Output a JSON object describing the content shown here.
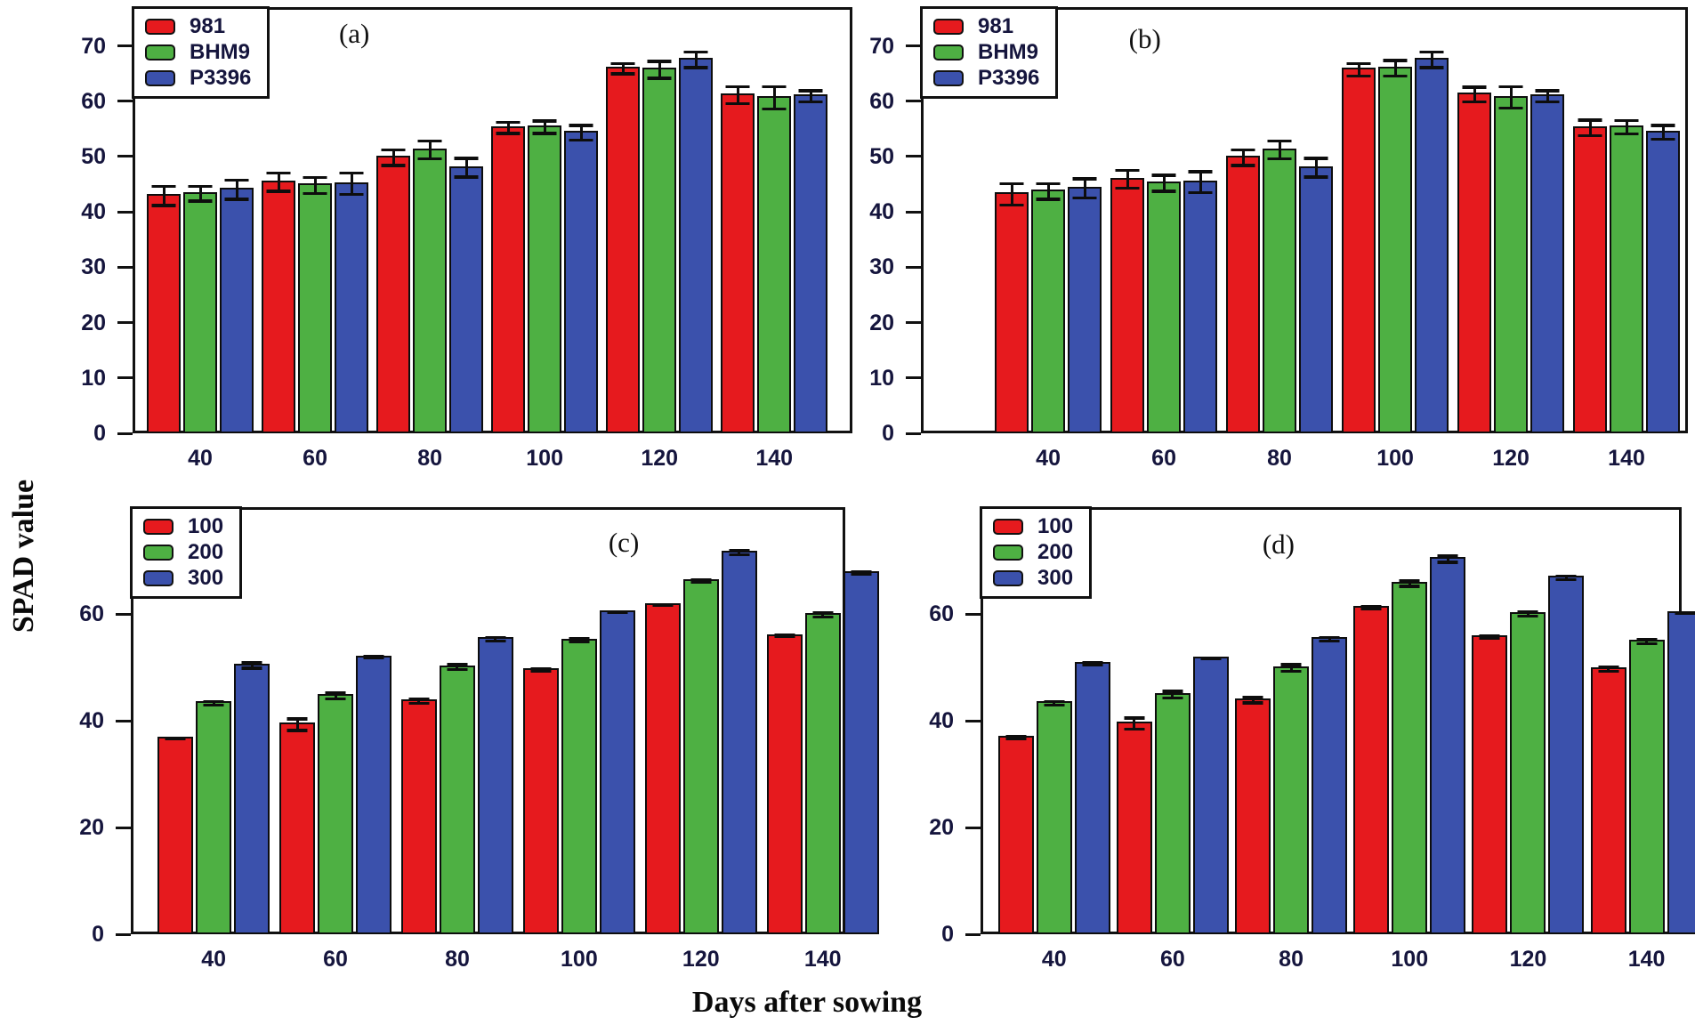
{
  "figure": {
    "xlabel": "Days after sowing",
    "ylabel": "SPAD value"
  },
  "colors": {
    "red": "#e61a1e",
    "green": "#4eb043",
    "blue": "#3b51ac",
    "axis": "#111111",
    "tick_text": "#15153d"
  },
  "chart_data": [
    {
      "id": "a",
      "panel_label": "(a)",
      "type": "bar",
      "legend_position": "top-left",
      "grid": false,
      "categories": [
        "40",
        "60",
        "80",
        "100",
        "120",
        "140"
      ],
      "ylim": [
        0,
        77
      ],
      "yticks": [
        0,
        10,
        20,
        30,
        40,
        50,
        60,
        70
      ],
      "series": [
        {
          "name": "981",
          "color": "red",
          "values": [
            43.2,
            45.7,
            50.1,
            55.5,
            66.2,
            61.4
          ],
          "errors": [
            2.0,
            1.9,
            1.7,
            1.3,
            1.2,
            1.8
          ]
        },
        {
          "name": "BHM9",
          "color": "green",
          "values": [
            43.6,
            45.1,
            51.5,
            55.6,
            66.0,
            60.9
          ],
          "errors": [
            1.6,
            1.7,
            1.9,
            1.4,
            1.8,
            2.3
          ]
        },
        {
          "name": "P3396",
          "color": "blue",
          "values": [
            44.3,
            45.4,
            48.3,
            54.6,
            67.8,
            61.2
          ],
          "errors": [
            2.0,
            2.2,
            2.0,
            1.6,
            1.7,
            1.3
          ]
        }
      ]
    },
    {
      "id": "b",
      "panel_label": "(b)",
      "type": "bar",
      "legend_position": "top-left",
      "grid": false,
      "categories": [
        "40",
        "60",
        "80",
        "100",
        "120",
        "140"
      ],
      "ylim": [
        0,
        77
      ],
      "yticks": [
        0,
        10,
        20,
        30,
        40,
        50,
        60,
        70
      ],
      "series": [
        {
          "name": "981",
          "color": "red",
          "values": [
            43.5,
            46.2,
            50.1,
            66.0,
            61.5,
            55.5
          ],
          "errors": [
            2.2,
            1.9,
            1.7,
            1.4,
            1.6,
            1.7
          ]
        },
        {
          "name": "BHM9",
          "color": "green",
          "values": [
            44.0,
            45.5,
            51.5,
            66.3,
            61.0,
            55.6
          ],
          "errors": [
            1.7,
            1.7,
            1.9,
            1.7,
            2.2,
            1.5
          ]
        },
        {
          "name": "P3396",
          "color": "blue",
          "values": [
            44.6,
            45.7,
            48.3,
            67.8,
            61.2,
            54.7
          ],
          "errors": [
            2.0,
            2.2,
            2.0,
            1.7,
            1.3,
            1.5
          ]
        }
      ]
    },
    {
      "id": "c",
      "panel_label": "(c)",
      "type": "bar",
      "legend_position": "top-left",
      "grid": false,
      "categories": [
        "40",
        "60",
        "80",
        "100",
        "120",
        "140"
      ],
      "ylim": [
        0,
        80
      ],
      "yticks": [
        0,
        20,
        40,
        60
      ],
      "series": [
        {
          "name": "100",
          "color": "red",
          "values": [
            37.0,
            39.6,
            44.0,
            49.8,
            62.0,
            56.2
          ],
          "errors": [
            0.4,
            1.4,
            0.7,
            0.5,
            0.4,
            0.4
          ]
        },
        {
          "name": "200",
          "color": "green",
          "values": [
            43.6,
            45.0,
            50.4,
            55.4,
            66.5,
            60.2
          ],
          "errors": [
            0.6,
            0.9,
            0.8,
            0.6,
            0.5,
            0.7
          ]
        },
        {
          "name": "300",
          "color": "blue",
          "values": [
            50.7,
            52.2,
            55.6,
            60.6,
            71.8,
            68.0
          ],
          "errors": [
            0.8,
            0.4,
            0.6,
            0.3,
            0.7,
            0.5
          ]
        }
      ]
    },
    {
      "id": "d",
      "panel_label": "(d)",
      "type": "bar",
      "legend_position": "top-left",
      "grid": false,
      "categories": [
        "40",
        "60",
        "80",
        "100",
        "120",
        "140"
      ],
      "ylim": [
        0,
        80
      ],
      "yticks": [
        0,
        20,
        40,
        60
      ],
      "series": [
        {
          "name": "100",
          "color": "red",
          "values": [
            37.2,
            39.8,
            44.2,
            61.5,
            56.0,
            50.0
          ],
          "errors": [
            0.5,
            1.3,
            0.8,
            0.5,
            0.5,
            0.7
          ]
        },
        {
          "name": "200",
          "color": "green",
          "values": [
            43.6,
            45.2,
            50.2,
            66.0,
            60.3,
            55.2
          ],
          "errors": [
            0.6,
            0.9,
            0.9,
            0.8,
            0.7,
            0.7
          ]
        },
        {
          "name": "300",
          "color": "blue",
          "values": [
            51.0,
            52.0,
            55.6,
            70.6,
            67.1,
            60.5
          ],
          "errors": [
            0.5,
            0.4,
            0.6,
            0.9,
            0.6,
            0.4
          ]
        }
      ]
    }
  ]
}
